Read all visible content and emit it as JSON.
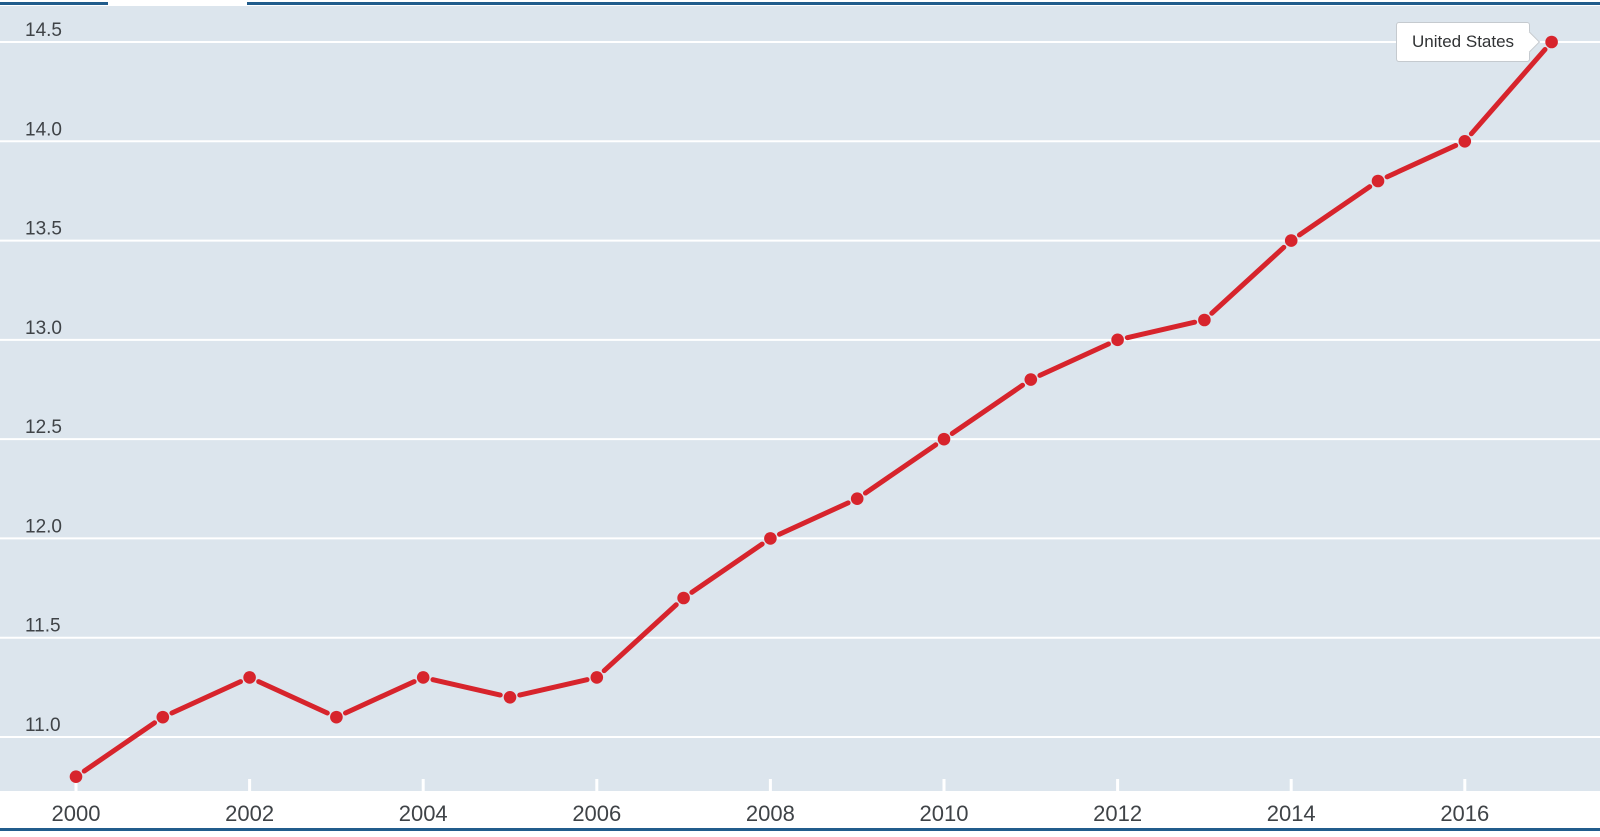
{
  "tooltip": {
    "label": "United States"
  },
  "chart_data": {
    "type": "line",
    "title": "",
    "xlabel": "",
    "ylabel": "",
    "x": [
      2000,
      2001,
      2002,
      2003,
      2004,
      2005,
      2006,
      2007,
      2008,
      2009,
      2010,
      2011,
      2012,
      2013,
      2014,
      2015,
      2016,
      2017
    ],
    "series": [
      {
        "name": "United States",
        "color": "#d7242c",
        "values": [
          10.8,
          11.1,
          11.3,
          11.1,
          11.3,
          11.2,
          11.3,
          11.7,
          12.0,
          12.2,
          12.5,
          12.8,
          13.0,
          13.1,
          13.5,
          13.8,
          14.0,
          14.5
        ]
      }
    ],
    "xticks": [
      2000,
      2002,
      2004,
      2006,
      2008,
      2010,
      2012,
      2014,
      2016
    ],
    "yticks": [
      14.5,
      14.0,
      13.5,
      13.0,
      12.5,
      12.0,
      11.5,
      11.0
    ],
    "ytick_format": "one-decimal",
    "ylim": [
      10.7,
      14.68
    ],
    "xlim": [
      2000,
      2017
    ],
    "grid": "horizontal",
    "legend_position": "end-of-line tooltip",
    "marker": "circle"
  },
  "colors": {
    "plot_background": "#dce5ed",
    "gridline": "#ffffff",
    "series_red": "#d7242c",
    "frame_blue": "#215c8c",
    "axis_text": "#3f4347",
    "tick_mark": "#ffffff",
    "tooltip_border": "#c5cacf",
    "tooltip_background": "#ffffff",
    "tooltip_text": "#303234"
  }
}
